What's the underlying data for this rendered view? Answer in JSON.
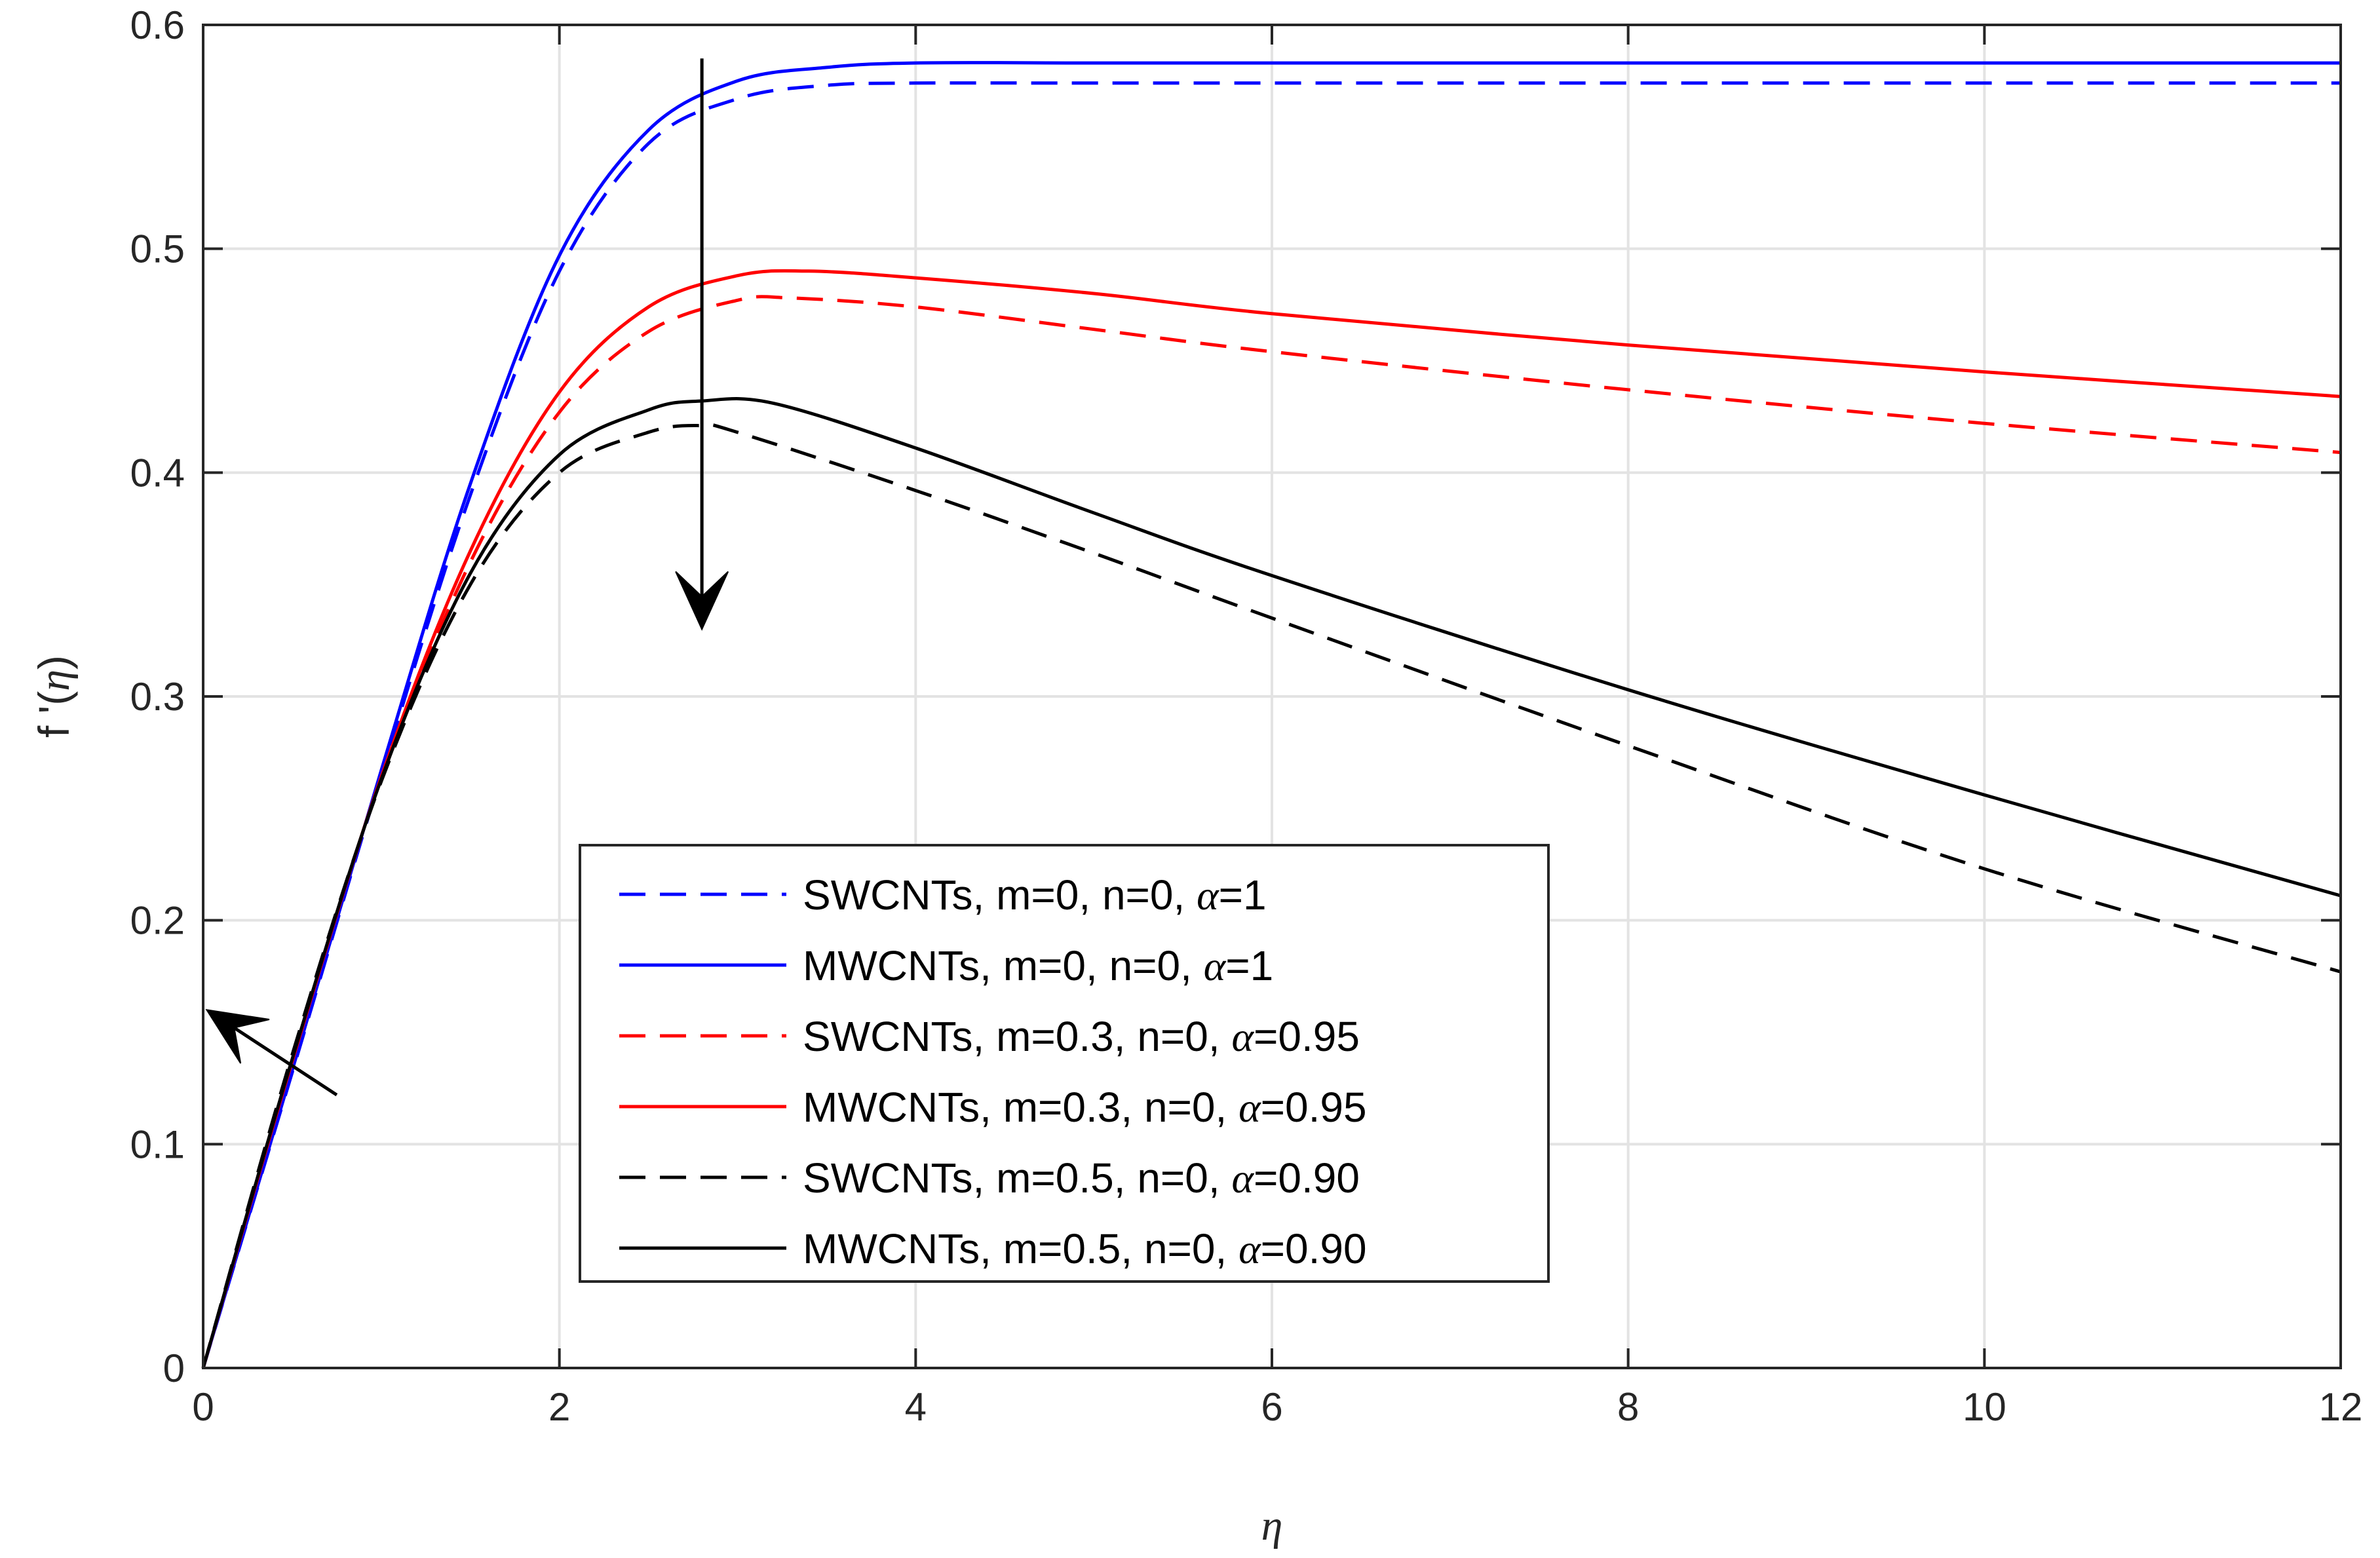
{
  "chart_data": {
    "type": "line",
    "title": "",
    "xlabel": "η",
    "ylabel_parts": {
      "prefix": "f '(",
      "symbol": "η",
      "suffix": ")"
    },
    "xlim": [
      0,
      12
    ],
    "ylim": [
      0,
      0.6
    ],
    "xticks": [
      0,
      2,
      4,
      6,
      8,
      10,
      12
    ],
    "yticks": [
      0,
      0.1,
      0.2,
      0.3,
      0.4,
      0.5,
      0.6
    ],
    "xtick_labels": [
      "0",
      "2",
      "4",
      "6",
      "8",
      "10",
      "12"
    ],
    "ytick_labels": [
      "0",
      "0.1",
      "0.2",
      "0.3",
      "0.4",
      "0.5",
      "0.6"
    ],
    "grid": true,
    "legend_position": "center",
    "series": [
      {
        "name": "SWCNTs, m=0, n=0, α=1",
        "label_prefix": "SWCNTs, m=0, n=0, ",
        "label_value": "=1",
        "color": "#0000ff",
        "dash": "dashed",
        "x": [
          0,
          0.5,
          1,
          1.5,
          2,
          2.5,
          3,
          3.5,
          4,
          5,
          6,
          8,
          10,
          12
        ],
        "y": [
          0,
          0.132,
          0.265,
          0.39,
          0.49,
          0.547,
          0.567,
          0.573,
          0.574,
          0.574,
          0.574,
          0.574,
          0.574,
          0.574
        ]
      },
      {
        "name": "MWCNTs, m=0, n=0, α=1",
        "label_prefix": "MWCNTs, m=0, n=0, ",
        "label_value": "=1",
        "color": "#0000ff",
        "dash": "solid",
        "x": [
          0,
          0.5,
          1,
          1.5,
          2,
          2.5,
          3,
          3.5,
          4,
          5,
          6,
          8,
          10,
          12
        ],
        "y": [
          0,
          0.133,
          0.267,
          0.395,
          0.497,
          0.553,
          0.575,
          0.581,
          0.583,
          0.583,
          0.583,
          0.583,
          0.583,
          0.583
        ]
      },
      {
        "name": "SWCNTs, m=0.3, n=0, α=0.95",
        "label_prefix": "SWCNTs, m=0.3, n=0, ",
        "label_value": "=0.95",
        "color": "#ff0000",
        "dash": "dashed",
        "x": [
          0,
          0.5,
          1,
          1.5,
          2,
          2.5,
          3,
          3.3,
          4,
          5,
          6,
          8,
          10,
          12
        ],
        "y": [
          0,
          0.138,
          0.263,
          0.36,
          0.427,
          0.463,
          0.477,
          0.478,
          0.474,
          0.464,
          0.454,
          0.437,
          0.422,
          0.409
        ]
      },
      {
        "name": "MWCNTs, m=0.3, n=0, α=0.95",
        "label_prefix": "MWCNTs, m=0.3, n=0, ",
        "label_value": "=0.95",
        "color": "#ff0000",
        "dash": "solid",
        "x": [
          0,
          0.5,
          1,
          1.5,
          2,
          2.5,
          3,
          3.4,
          4,
          5,
          6,
          8,
          10,
          12
        ],
        "y": [
          0,
          0.137,
          0.264,
          0.365,
          0.436,
          0.474,
          0.488,
          0.49,
          0.487,
          0.48,
          0.471,
          0.457,
          0.445,
          0.434
        ]
      },
      {
        "name": "SWCNTs, m=0.5, n=0, α=0.90",
        "label_prefix": "SWCNTs, m=0.5, n=0, ",
        "label_value": "=0.90",
        "color": "#000000",
        "dash": "dashed",
        "x": [
          0,
          0.5,
          1,
          1.5,
          2,
          2.5,
          2.8,
          3,
          4,
          5,
          6,
          8,
          10,
          12
        ],
        "y": [
          0,
          0.14,
          0.262,
          0.35,
          0.4,
          0.418,
          0.421,
          0.418,
          0.392,
          0.364,
          0.335,
          0.278,
          0.223,
          0.177
        ]
      },
      {
        "name": "MWCNTs, m=0.5, n=0, α=0.90",
        "label_prefix": "MWCNTs, m=0.5, n=0, ",
        "label_value": "=0.90",
        "color": "#000000",
        "dash": "solid",
        "x": [
          0,
          0.5,
          1,
          1.5,
          2,
          2.5,
          2.8,
          3.2,
          4,
          5,
          6,
          8,
          10,
          12
        ],
        "y": [
          0,
          0.138,
          0.263,
          0.355,
          0.408,
          0.428,
          0.432,
          0.431,
          0.411,
          0.382,
          0.354,
          0.303,
          0.256,
          0.211
        ]
      }
    ],
    "alpha_symbol": "α",
    "annotations": [
      {
        "type": "arrow",
        "description": "downward arrow",
        "from": [
          2.8,
          0.585
        ],
        "to": [
          2.8,
          0.33
        ]
      },
      {
        "type": "arrow",
        "description": "arrow pointing to y-axis",
        "from": [
          0.75,
          0.122
        ],
        "to": [
          0.02,
          0.16
        ]
      }
    ]
  }
}
